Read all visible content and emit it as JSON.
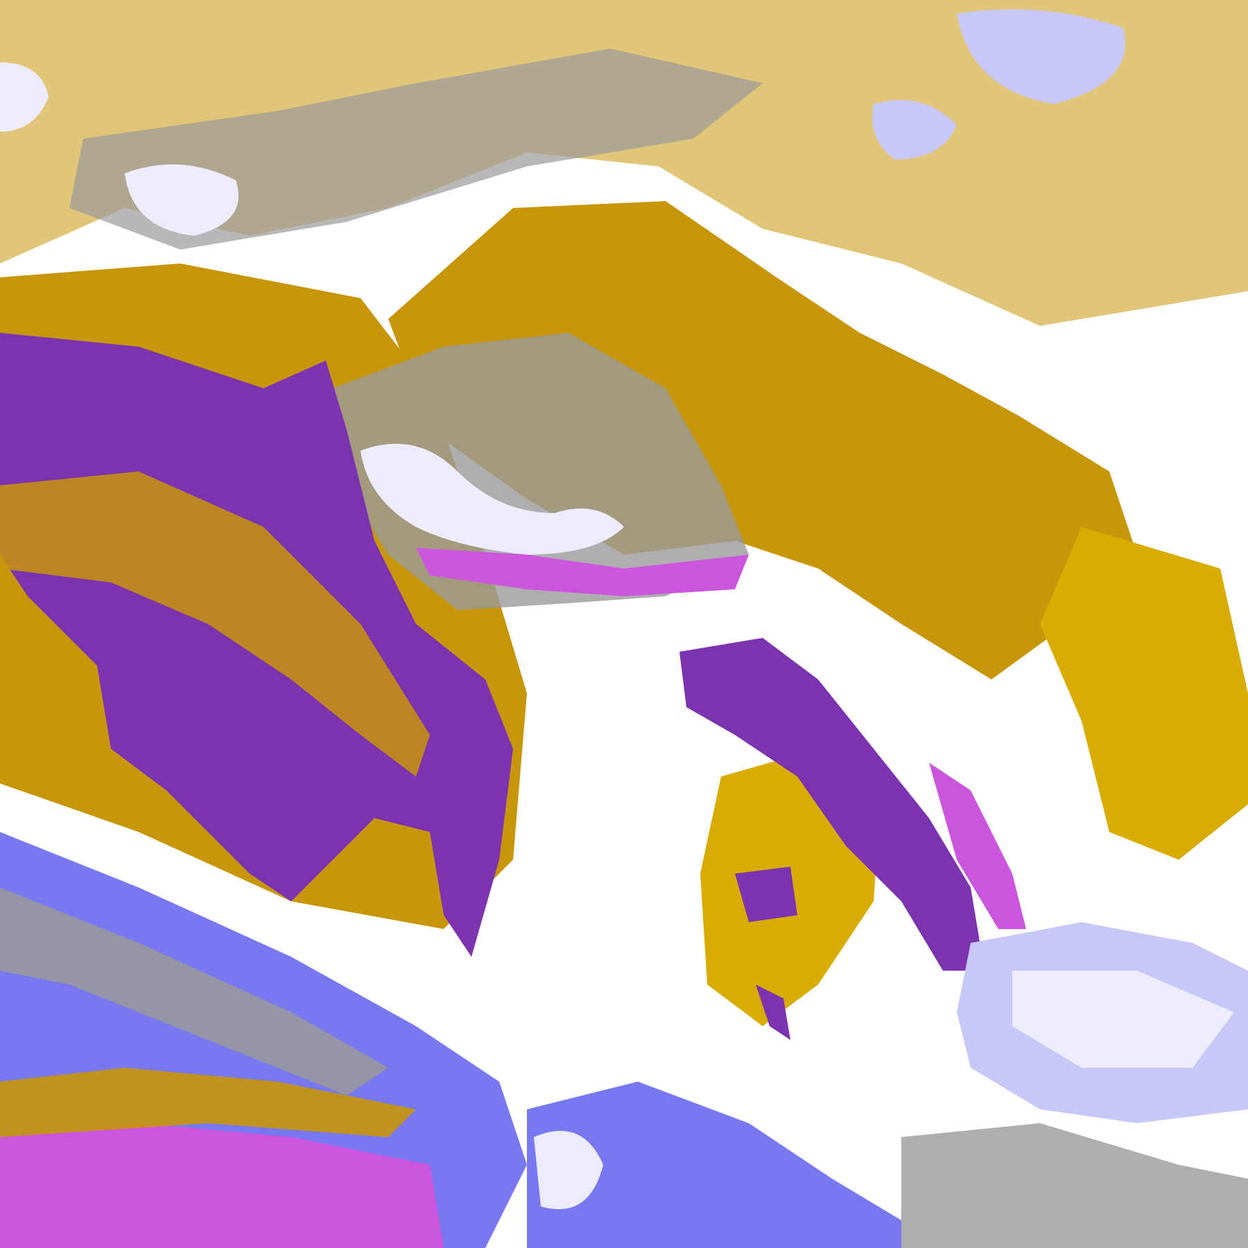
{
  "image": {
    "kind": "false-color satellite cloud imagery",
    "palette": {
      "clear": "#ffffff",
      "gold": "#c8960a",
      "gold_light": "#d8ac00",
      "purple": "#7b33b0",
      "magenta": "#cc55dd",
      "lavender": "#c8c8f8",
      "lavender_pale": "#ececfc",
      "blue_violet": "#7878f0",
      "gray": "#9a9a9a"
    }
  }
}
